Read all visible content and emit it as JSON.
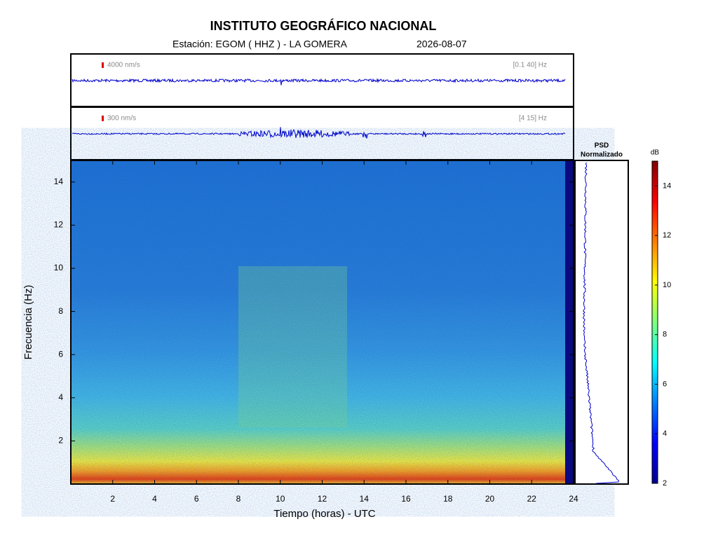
{
  "header": {
    "title": "INSTITUTO GEOGRÁFICO NACIONAL",
    "station": "Estación:  EGOM ( HHZ ) - LA GOMERA",
    "date": "2026-08-07"
  },
  "chart_data": [
    {
      "type": "waveform",
      "amplitude_label": "4000 nm/s",
      "band_label": "[0.1 40] Hz",
      "color": "#0000cc"
    },
    {
      "type": "waveform",
      "amplitude_label": "300 nm/s",
      "band_label": "[4 15] Hz",
      "color": "#0000cc"
    },
    {
      "type": "spectrogram",
      "xlabel": "Tiempo (horas) - UTC",
      "ylabel": "Frecuencia  (Hz)",
      "xlim": [
        0,
        24
      ],
      "xticks": [
        2,
        4,
        6,
        8,
        10,
        12,
        14,
        16,
        18,
        20,
        22,
        24
      ],
      "ylim": [
        0,
        15
      ],
      "yticks": [
        2,
        4,
        6,
        8,
        10,
        12,
        14
      ]
    },
    {
      "type": "psd",
      "title": "PSD",
      "subtitle": "Normalizado",
      "color": "#0000cc"
    },
    {
      "type": "colorbar",
      "label": "dB",
      "lim": [
        2,
        15
      ],
      "ticks": [
        2,
        4,
        6,
        8,
        10,
        12,
        14
      ]
    }
  ]
}
